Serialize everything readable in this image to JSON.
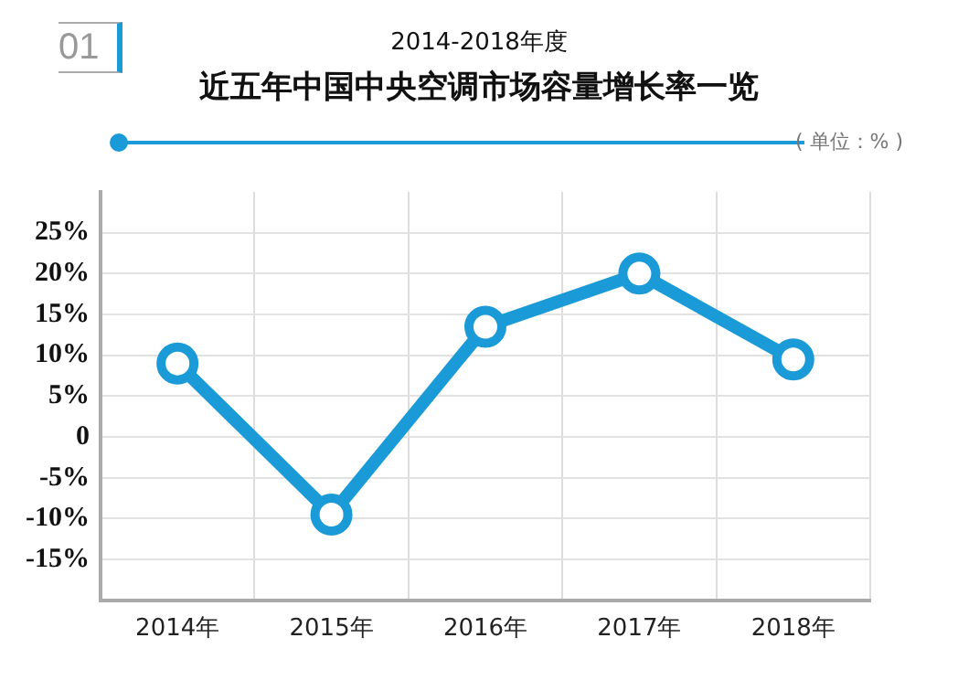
{
  "chart_data": {
    "type": "line",
    "title": "近五年中国中央空调市场容量增长率一览",
    "subtitle": "2014-2018年度",
    "annotations": [
      "01",
      "( 单位：% )"
    ],
    "categories": [
      "2014年",
      "2015年",
      "2016年",
      "2017年",
      "2018年"
    ],
    "series": [
      {
        "color": "#1a9bd7",
        "values": [
          9,
          -9.5,
          13.5,
          20,
          9.5
        ]
      }
    ],
    "ylim": [
      -20,
      30
    ],
    "yticks": [
      {
        "value": -15,
        "label": "-15%"
      },
      {
        "value": -10,
        "label": "-10%"
      },
      {
        "value": -5,
        "label": "-5%"
      },
      {
        "value": 0,
        "label": "0"
      },
      {
        "value": 5,
        "label": "5%"
      },
      {
        "value": 10,
        "label": "10%"
      },
      {
        "value": 15,
        "label": "15%"
      },
      {
        "value": 20,
        "label": "20%"
      },
      {
        "value": 25,
        "label": "25%"
      }
    ],
    "grid": true,
    "legend": false,
    "marker": "circle",
    "line_style": "solid"
  }
}
